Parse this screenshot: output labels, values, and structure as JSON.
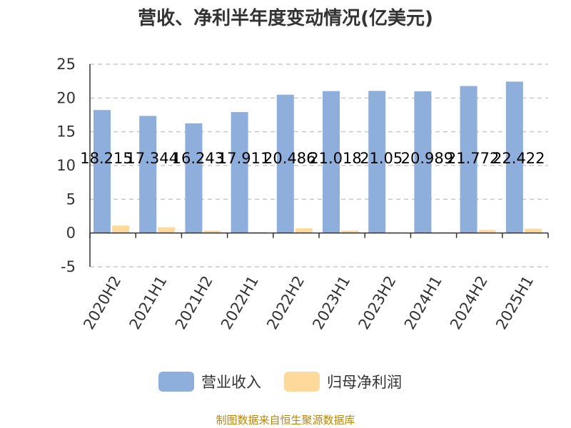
{
  "chart_data": {
    "type": "bar",
    "title": "营收、净利半年度变动情况(亿美元)",
    "categories": [
      "2020H2",
      "2021H1",
      "2021H2",
      "2022H1",
      "2022H2",
      "2023H1",
      "2023H2",
      "2024H1",
      "2024H2",
      "2025H1"
    ],
    "series": [
      {
        "name": "营业收入",
        "color": "#8eaedb",
        "values": [
          18.215,
          17.344,
          16.243,
          17.911,
          20.486,
          21.018,
          21.05,
          20.989,
          21.772,
          22.422
        ],
        "labels": [
          "18.215",
          "17.344",
          "16.243",
          "17.911",
          "20.486",
          "21.018",
          "21.05",
          "20.989",
          "21.772",
          "22.422"
        ]
      },
      {
        "name": "归母净利润",
        "color": "#fdd99b",
        "values": [
          1.1,
          0.85,
          0.35,
          0.15,
          0.7,
          0.35,
          0.1,
          0.12,
          0.45,
          0.65
        ]
      }
    ],
    "ylim": [
      -5,
      25
    ],
    "yticks": [
      25,
      20,
      15,
      10,
      5,
      0,
      -5
    ],
    "grid": true,
    "legend": "bottom"
  },
  "source_text": "制图数据来自恒生聚源数据库"
}
